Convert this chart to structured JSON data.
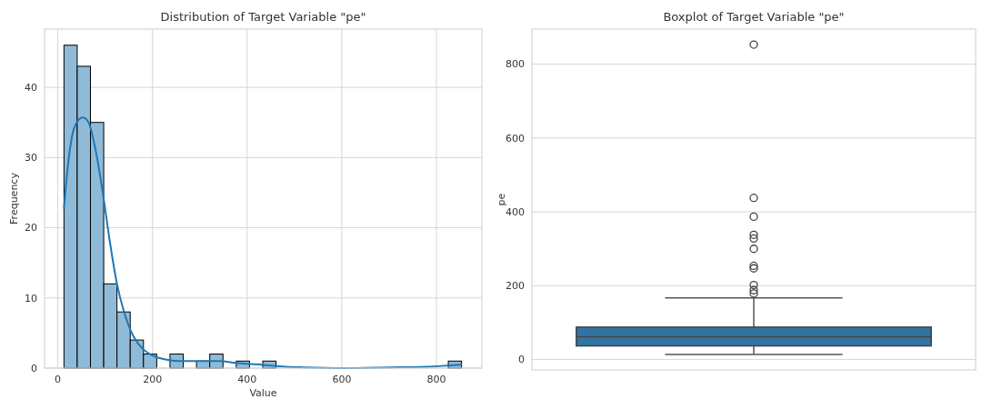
{
  "chart_data": [
    {
      "type": "histogram",
      "title": "Distribution of Target Variable \"pe\"",
      "xlabel": "Value",
      "ylabel": "Frequency",
      "xlim": [
        -28,
        896
      ],
      "xticks": [
        0,
        200,
        400,
        600,
        800
      ],
      "ylim": [
        0,
        48.3
      ],
      "yticks": [
        0,
        10,
        20,
        30,
        40
      ],
      "grid": true,
      "series": [
        {
          "type": "histogram",
          "color": "#8fbbd9",
          "bins": [
            13,
            41,
            69,
            97,
            125,
            153,
            181,
            209,
            237,
            265,
            293,
            321,
            349,
            377,
            405,
            433,
            461,
            489,
            517,
            545,
            573,
            601,
            629,
            657,
            685,
            713,
            741,
            769,
            797,
            825,
            853
          ],
          "values": [
            46,
            43,
            35,
            12,
            8,
            4,
            2,
            0,
            2,
            0,
            1,
            2,
            0,
            1,
            0,
            1,
            0,
            0,
            0,
            0,
            0,
            0,
            0,
            0,
            0,
            0,
            0,
            0,
            0,
            1
          ]
        },
        {
          "type": "line",
          "color": "#1f77b4",
          "x": [
            13,
            20,
            30,
            40,
            53,
            65,
            80,
            95,
            110,
            125,
            140,
            160,
            180,
            200,
            230,
            260,
            300,
            340,
            380,
            430,
            480,
            520,
            600,
            700,
            780,
            830,
            853
          ],
          "values": [
            22.7,
            28,
            33,
            35,
            35.7,
            35,
            31,
            25,
            18,
            12,
            8,
            4.5,
            2.7,
            1.8,
            1.2,
            1.0,
            1.0,
            1.0,
            0.7,
            0.5,
            0.2,
            0.1,
            0,
            0.1,
            0.2,
            0.4,
            0.5
          ]
        }
      ]
    },
    {
      "type": "box",
      "title": "Boxplot of Target Variable \"pe\"",
      "ylabel": "pe",
      "categories": [
        null
      ],
      "ylim": [
        -28,
        895
      ],
      "yticks": [
        0,
        200,
        400,
        600,
        800
      ],
      "grid": "y",
      "tick_labels": "y",
      "color": "#3274a1",
      "boxes": [
        {
          "low": 14,
          "q1": 37,
          "median": 62,
          "q3": 88,
          "high": 167,
          "outliers": [
            853,
            438,
            387,
            338,
            328,
            300,
            254,
            247,
            202,
            188,
            179
          ]
        }
      ]
    }
  ]
}
